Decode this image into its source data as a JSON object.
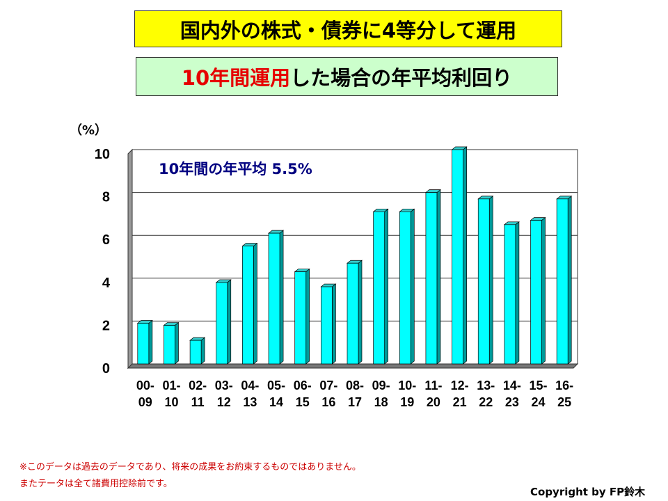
{
  "title1": "国内外の株式・債券に4等分して運用",
  "title2": {
    "highlight": "10年間運用",
    "rest": "した場合の年平均利回り"
  },
  "chart_data": {
    "type": "bar",
    "ylabel": "（%）",
    "ylim": [
      0,
      10
    ],
    "yticks": [
      "0",
      "2",
      "4",
      "6",
      "8",
      "10"
    ],
    "annotation": "10年間の年平均 5.5%",
    "categories": [
      [
        "00-",
        "09"
      ],
      [
        "01-",
        "10"
      ],
      [
        "02-",
        "11"
      ],
      [
        "03-",
        "12"
      ],
      [
        "04-",
        "13"
      ],
      [
        "05-",
        "14"
      ],
      [
        "06-",
        "15"
      ],
      [
        "07-",
        "16"
      ],
      [
        "08-",
        "17"
      ],
      [
        "09-",
        "18"
      ],
      [
        "10-",
        "19"
      ],
      [
        "11-",
        "20"
      ],
      [
        "12-",
        "21"
      ],
      [
        "13-",
        "22"
      ],
      [
        "14-",
        "23"
      ],
      [
        "15-",
        "24"
      ],
      [
        "16-",
        "25"
      ]
    ],
    "values": [
      1.9,
      1.8,
      1.1,
      3.8,
      5.5,
      6.1,
      4.3,
      3.6,
      4.7,
      7.1,
      7.1,
      8.0,
      10.0,
      7.7,
      6.5,
      6.7,
      7.7
    ],
    "grid": true,
    "colors": {
      "bar": "#00ffff",
      "side": "#009999",
      "annotation": "#000080"
    }
  },
  "notes": [
    "※このデータは過去のデータであり、将来の成果をお約束するものではありません。",
    "またテータは全て諸費用控除前です。"
  ],
  "copyright": "Copyright by FP鈴木"
}
